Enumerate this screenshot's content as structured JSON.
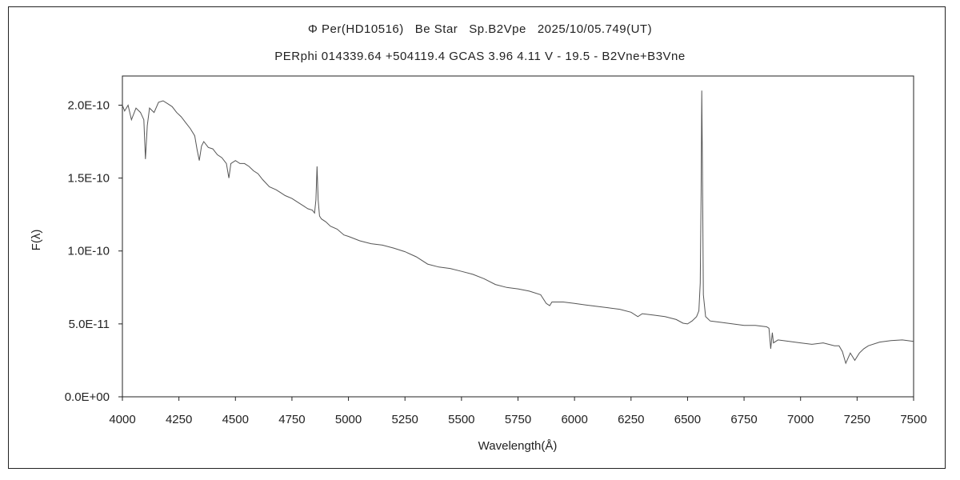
{
  "chart_data": {
    "type": "line",
    "title": "Φ Per(HD10516)   Be Star   Sp.B2Vpe   2025/10/05.749(UT)",
    "subtitle": "PERphi 014339.64 +504119.4 GCAS 3.96 4.11 V - 19.5 - B2Vne+B3Vne",
    "xlabel": "Wavelength(Å)",
    "ylabel": "F(λ)",
    "xlim": [
      4000,
      7500
    ],
    "ylim": [
      0,
      2.2e-10
    ],
    "grid": false,
    "x_ticks": [
      4000,
      4250,
      4500,
      4750,
      5000,
      5250,
      5500,
      5750,
      6000,
      6250,
      6500,
      6750,
      7000,
      7250,
      7500
    ],
    "x_tick_labels": [
      "4000",
      "4250",
      "4500",
      "4750",
      "5000",
      "5250",
      "5500",
      "5750",
      "6000",
      "6250",
      "6500",
      "6750",
      "7000",
      "7250",
      "7500"
    ],
    "y_ticks": [
      0,
      5e-11,
      1e-10,
      1.5e-10,
      2e-10
    ],
    "y_tick_labels": [
      "0.0E+00",
      "5.0E-11",
      "1.0E-10",
      "1.5E-10",
      "2.0E-10"
    ],
    "color": "#555555",
    "series": [
      {
        "x": [
          4000,
          4010,
          4025,
          4040,
          4060,
          4080,
          4095,
          4102,
          4110,
          4120,
          4140,
          4160,
          4180,
          4200,
          4220,
          4240,
          4260,
          4280,
          4300,
          4320,
          4330,
          4340,
          4350,
          4360,
          4380,
          4400,
          4420,
          4440,
          4460,
          4471,
          4480,
          4500,
          4520,
          4540,
          4560,
          4580,
          4600,
          4620,
          4650,
          4680,
          4700,
          4720,
          4750,
          4780,
          4800,
          4820,
          4840,
          4850,
          4856,
          4861,
          4866,
          4872,
          4880,
          4900,
          4920,
          4950,
          4980,
          5000,
          5050,
          5100,
          5150,
          5200,
          5250,
          5300,
          5350,
          5400,
          5450,
          5500,
          5550,
          5600,
          5650,
          5700,
          5750,
          5800,
          5850,
          5875,
          5890,
          5900,
          5950,
          6000,
          6050,
          6100,
          6150,
          6200,
          6250,
          6280,
          6300,
          6350,
          6400,
          6450,
          6480,
          6500,
          6520,
          6540,
          6550,
          6556,
          6560,
          6563,
          6566,
          6570,
          6580,
          6600,
          6650,
          6700,
          6750,
          6800,
          6850,
          6860,
          6868,
          6875,
          6880,
          6900,
          6950,
          7000,
          7050,
          7100,
          7150,
          7170,
          7185,
          7200,
          7220,
          7240,
          7260,
          7280,
          7300,
          7350,
          7400,
          7450,
          7500
        ],
        "y": [
          2e-10,
          1.96e-10,
          2e-10,
          1.9e-10,
          1.98e-10,
          1.95e-10,
          1.9e-10,
          1.63e-10,
          1.86e-10,
          1.98e-10,
          1.95e-10,
          2.02e-10,
          2.03e-10,
          2.01e-10,
          1.99e-10,
          1.95e-10,
          1.92e-10,
          1.88e-10,
          1.84e-10,
          1.79e-10,
          1.7e-10,
          1.62e-10,
          1.72e-10,
          1.75e-10,
          1.71e-10,
          1.7e-10,
          1.66e-10,
          1.64e-10,
          1.6e-10,
          1.5e-10,
          1.6e-10,
          1.62e-10,
          1.6e-10,
          1.6e-10,
          1.58e-10,
          1.55e-10,
          1.53e-10,
          1.49e-10,
          1.44e-10,
          1.42e-10,
          1.4e-10,
          1.38e-10,
          1.36e-10,
          1.33e-10,
          1.31e-10,
          1.29e-10,
          1.28e-10,
          1.26e-10,
          1.35e-10,
          1.58e-10,
          1.35e-10,
          1.24e-10,
          1.22e-10,
          1.2e-10,
          1.17e-10,
          1.15e-10,
          1.11e-10,
          1.1e-10,
          1.07e-10,
          1.05e-10,
          1.04e-10,
          1.02e-10,
          9.95e-11,
          9.6e-11,
          9.1e-11,
          8.9e-11,
          8.8e-11,
          8.6e-11,
          8.4e-11,
          8.1e-11,
          7.7e-11,
          7.5e-11,
          7.4e-11,
          7.25e-11,
          7e-11,
          6.4e-11,
          6.25e-11,
          6.5e-11,
          6.5e-11,
          6.4e-11,
          6.3e-11,
          6.2e-11,
          6.1e-11,
          6e-11,
          5.8e-11,
          5.5e-11,
          5.7e-11,
          5.6e-11,
          5.5e-11,
          5.3e-11,
          5.05e-11,
          5e-11,
          5.2e-11,
          5.5e-11,
          5.9e-11,
          7.8e-11,
          1.4e-10,
          2.1e-10,
          1.55e-10,
          7e-11,
          5.5e-11,
          5.2e-11,
          5.1e-11,
          5e-11,
          4.9e-11,
          4.9e-11,
          4.8e-11,
          4.7e-11,
          3.3e-11,
          4.4e-11,
          3.7e-11,
          3.9e-11,
          3.8e-11,
          3.7e-11,
          3.6e-11,
          3.7e-11,
          3.5e-11,
          3.5e-11,
          3.1e-11,
          2.3e-11,
          3e-11,
          2.5e-11,
          3e-11,
          3.3e-11,
          3.5e-11,
          3.75e-11,
          3.85e-11,
          3.9e-11,
          3.8e-11
        ]
      }
    ]
  }
}
